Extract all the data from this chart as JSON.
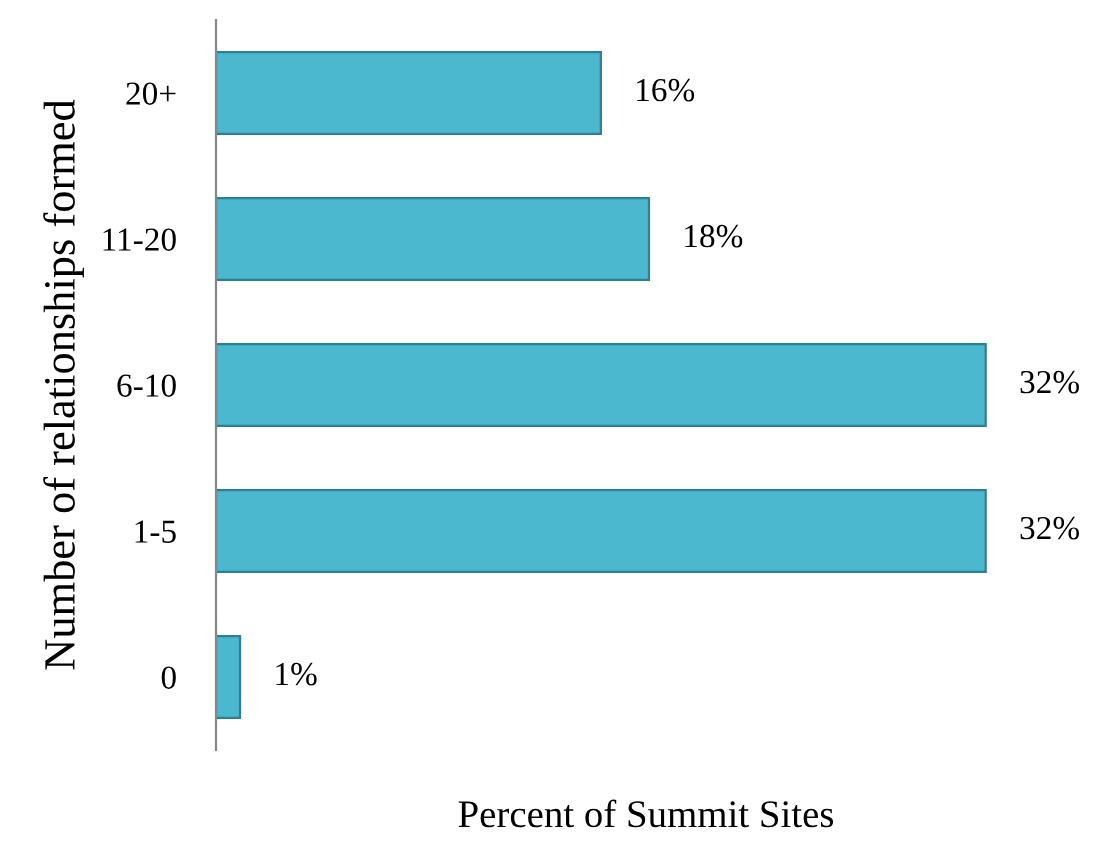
{
  "chart_data": {
    "type": "bar",
    "orientation": "horizontal",
    "categories": [
      "20+",
      "11-20",
      "6-10",
      "1-5",
      "0"
    ],
    "values": [
      16,
      18,
      32,
      32,
      1
    ],
    "value_labels": [
      "16%",
      "18%",
      "32%",
      "32%",
      "1%"
    ],
    "color": "#4bb8d0",
    "xlabel": "Percent of Summit Sites",
    "ylabel": "Number of relationships formed",
    "grid": false,
    "legend": false
  }
}
